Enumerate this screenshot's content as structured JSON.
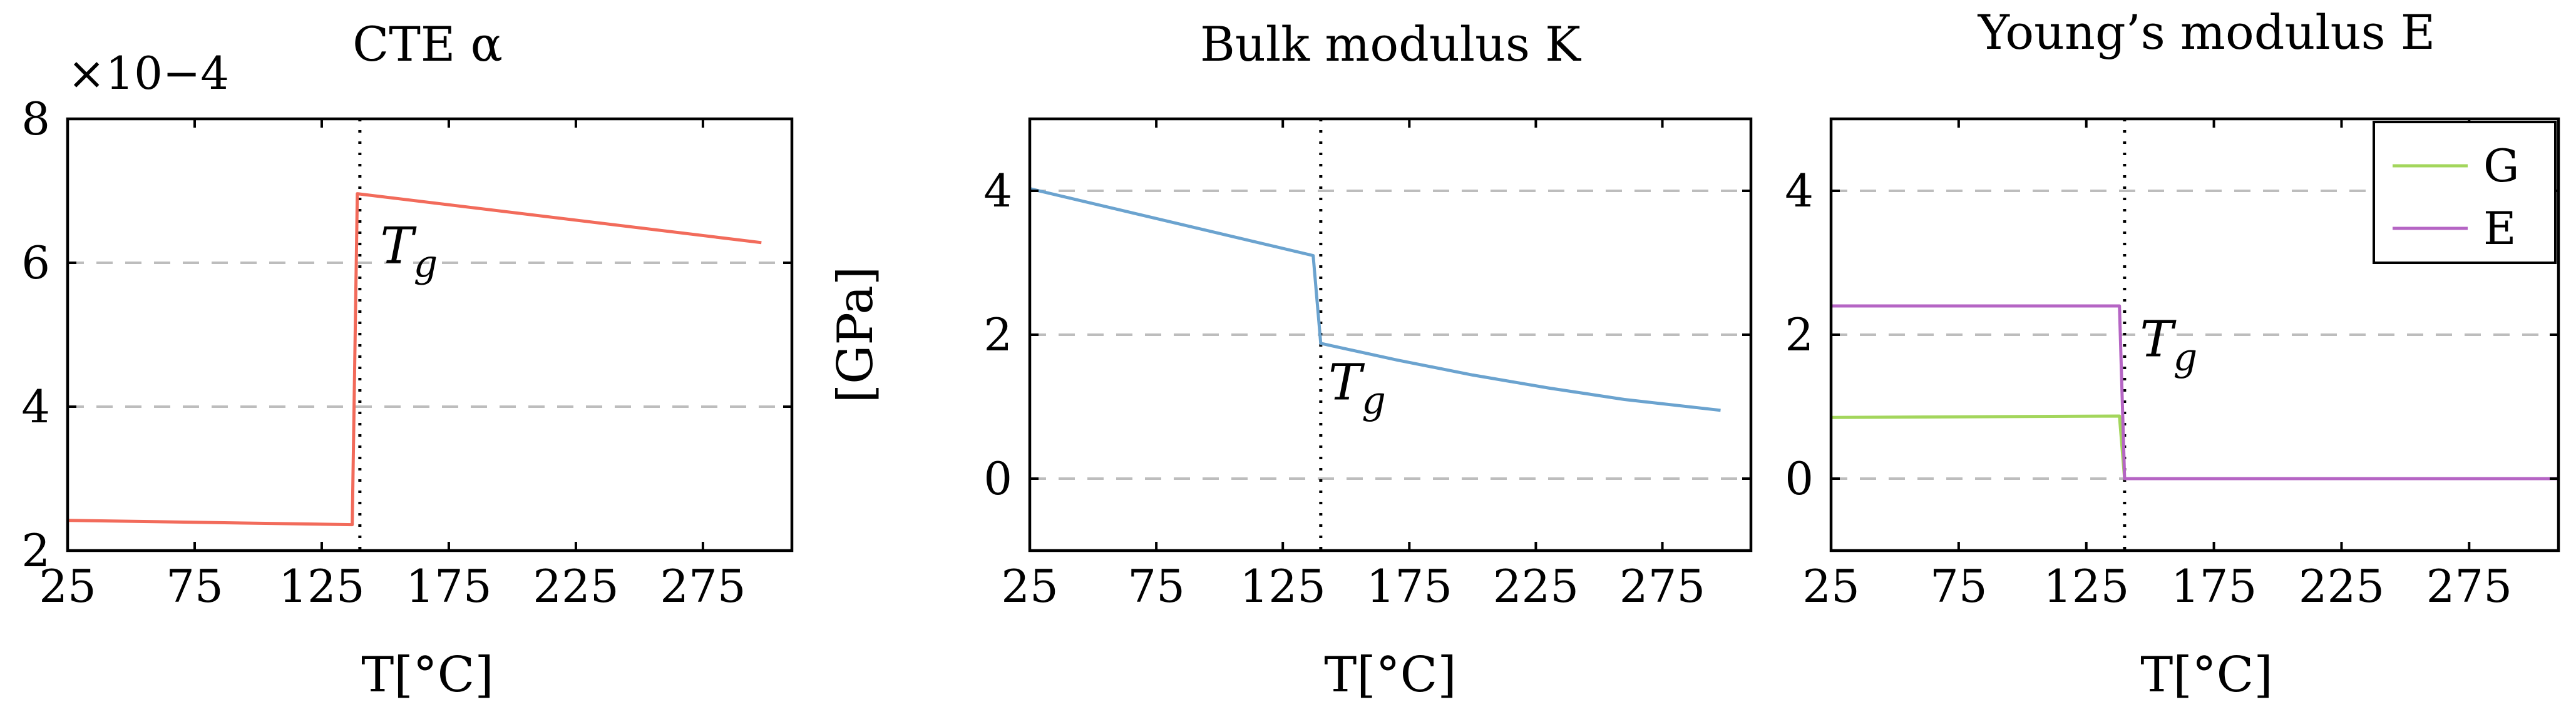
{
  "chart_data": [
    {
      "type": "line",
      "title": "CTE α",
      "multiplier_label": "×10−4",
      "xlabel": "T[°C]",
      "ylabel": "",
      "xlim": [
        25,
        310
      ],
      "ylim": [
        2,
        8
      ],
      "x_ticks": [
        25,
        75,
        125,
        175,
        225,
        275
      ],
      "y_ticks": [
        2,
        4,
        6,
        8
      ],
      "grid": "y-dashed",
      "tg": 140,
      "tg_label": "Tg",
      "tg_label_pos": [
        148,
        6.0
      ],
      "series": [
        {
          "name": "",
          "color": "#f26b5b",
          "x": [
            25,
            137,
            139,
            298
          ],
          "y": [
            2.42,
            2.36,
            6.96,
            6.28
          ]
        }
      ]
    },
    {
      "type": "line",
      "title": "Bulk modulus K",
      "xlabel": "T[°C]",
      "ylabel": "[GPa]",
      "xlim": [
        25,
        310
      ],
      "ylim": [
        -1,
        5
      ],
      "x_ticks": [
        25,
        75,
        125,
        175,
        225,
        275
      ],
      "y_ticks": [
        0,
        2,
        4
      ],
      "grid": "y-dashed",
      "tg": 140,
      "tg_label": "Tg",
      "tg_label_pos": [
        143,
        1.1
      ],
      "series": [
        {
          "name": "",
          "color": "#6ba3cf",
          "x": [
            25,
            137,
            140,
            170,
            200,
            230,
            260,
            298
          ],
          "y": [
            4.03,
            3.1,
            1.88,
            1.65,
            1.44,
            1.26,
            1.1,
            0.95
          ]
        }
      ]
    },
    {
      "type": "line",
      "title": "Young’s modulus E",
      "xlabel": "T[°C]",
      "ylabel": "",
      "xlim": [
        25,
        310
      ],
      "ylim": [
        -1,
        5
      ],
      "x_ticks": [
        25,
        75,
        125,
        175,
        225,
        275
      ],
      "y_ticks": [
        0,
        2,
        4
      ],
      "grid": "y-dashed",
      "legend": "top-right",
      "tg": 140,
      "tg_label": "Tg",
      "tg_label_pos": [
        146,
        1.7
      ],
      "series": [
        {
          "name": "G",
          "color": "#a3d65c",
          "x": [
            25,
            138,
            140,
            310
          ],
          "y": [
            0.85,
            0.87,
            0.0,
            0.0
          ]
        },
        {
          "name": "E",
          "color": "#b565c4",
          "x": [
            25,
            138,
            140,
            310
          ],
          "y": [
            2.4,
            2.4,
            0.0,
            0.0
          ]
        }
      ]
    }
  ]
}
